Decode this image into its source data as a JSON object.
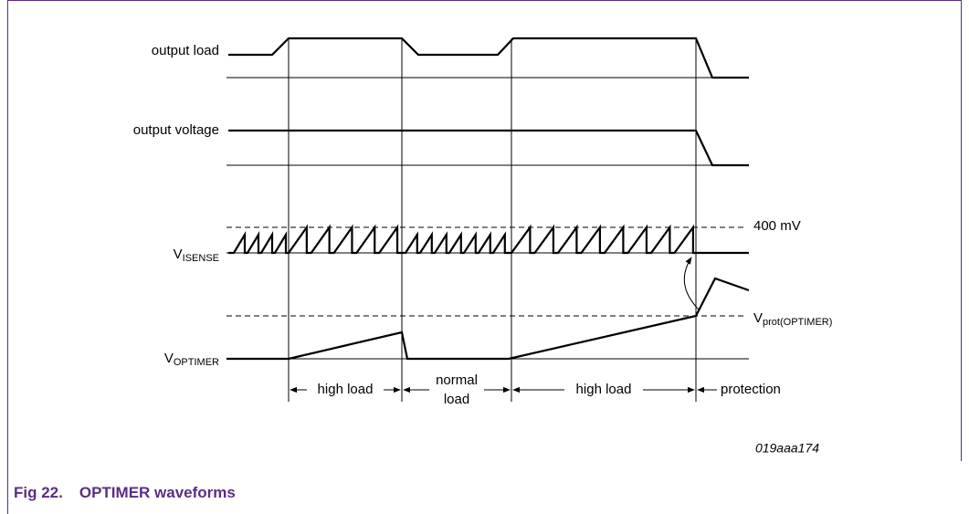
{
  "signals": [
    {
      "label": "output load"
    },
    {
      "label": "output voltage"
    },
    {
      "label": {
        "main": "V",
        "sub": "ISENSE"
      }
    },
    {
      "label": {
        "main": "V",
        "sub": "OPTIMER"
      }
    }
  ],
  "levels": {
    "current_limit": "400 mV",
    "protection": {
      "main": "V",
      "sub": "prot(OPTIMER)"
    }
  },
  "phases": [
    "high load",
    [
      "normal",
      "load"
    ],
    "high load",
    "protection"
  ],
  "figure_id": "019aaa174",
  "caption": {
    "number": "Fig 22.",
    "title": "OPTIMER waveforms"
  }
}
